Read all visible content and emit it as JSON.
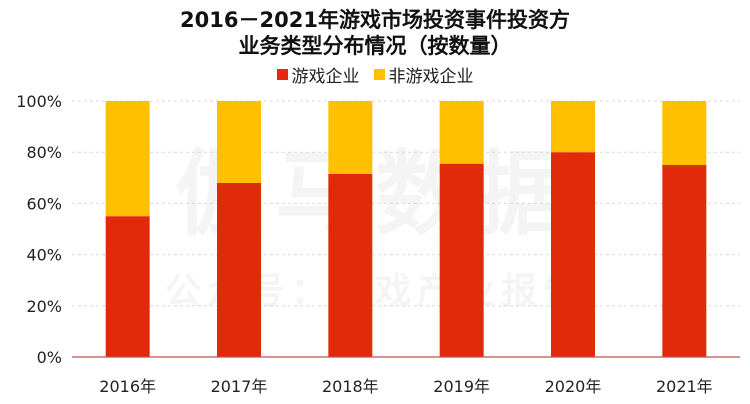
{
  "chart_data": {
    "type": "bar",
    "stacked": true,
    "title_line1": "2016－2021年游戏市场投资事件投资方",
    "title_line2": "业务类型分布情况（按数量）",
    "categories": [
      "2016年",
      "2017年",
      "2018年",
      "2019年",
      "2020年",
      "2021年"
    ],
    "series": [
      {
        "name": "游戏企业",
        "color": "#E02A0A",
        "values": [
          55,
          68,
          71.5,
          75.5,
          80,
          75
        ]
      },
      {
        "name": "非游戏企业",
        "color": "#FFC000",
        "values": [
          45,
          32,
          28.5,
          24.5,
          20,
          25
        ]
      }
    ],
    "ylim": [
      0,
      100
    ],
    "yticks": [
      "0%",
      "20%",
      "40%",
      "60%",
      "80%",
      "100%"
    ],
    "legend_position": "top-center",
    "grid": true
  },
  "watermark": {
    "line1": "伽马数据",
    "line2": "公众号：游戏产业报告"
  }
}
